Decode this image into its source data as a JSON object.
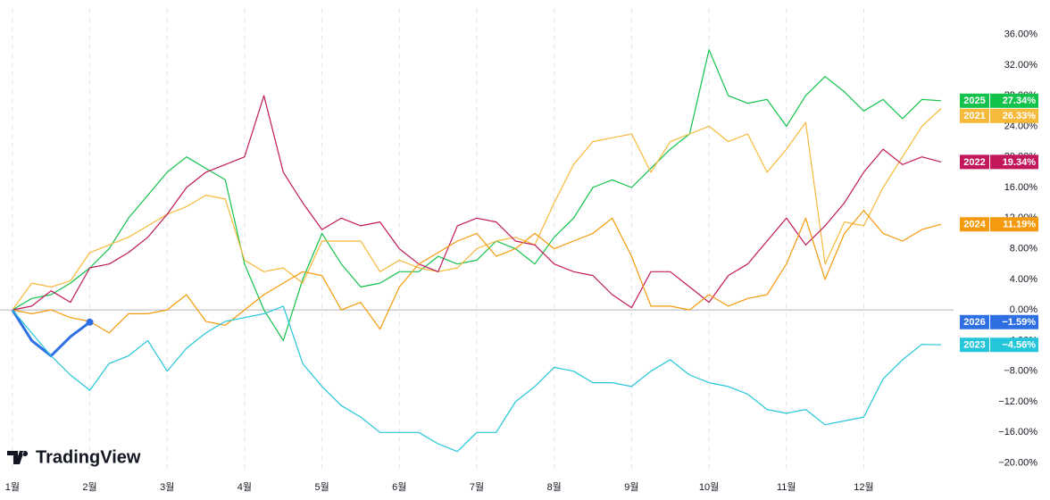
{
  "chart_data": {
    "type": "line",
    "logo": "TradingView",
    "x": [
      0,
      0.25,
      0.5,
      0.75,
      1,
      1.25,
      1.5,
      1.75,
      2,
      2.25,
      2.5,
      2.75,
      3,
      3.25,
      3.5,
      3.75,
      4,
      4.25,
      4.5,
      4.75,
      5,
      5.25,
      5.5,
      5.75,
      6,
      6.25,
      6.5,
      6.75,
      7,
      7.25,
      7.5,
      7.75,
      8,
      8.25,
      8.5,
      8.75,
      9,
      9.25,
      9.5,
      9.75,
      10,
      10.25,
      10.5,
      10.75,
      11,
      11.25,
      11.5,
      11.75,
      12
    ],
    "xlim": [
      -0.16,
      12.16
    ],
    "xticks": [
      {
        "value": 0,
        "label": "1월"
      },
      {
        "value": 1,
        "label": "2월"
      },
      {
        "value": 2,
        "label": "3월"
      },
      {
        "value": 3,
        "label": "4월"
      },
      {
        "value": 4,
        "label": "5월"
      },
      {
        "value": 5,
        "label": "6월"
      },
      {
        "value": 6,
        "label": "7월"
      },
      {
        "value": 7,
        "label": "8월"
      },
      {
        "value": 8,
        "label": "9월"
      },
      {
        "value": 9,
        "label": "10월"
      },
      {
        "value": 10,
        "label": "11월"
      },
      {
        "value": 11,
        "label": "12월"
      }
    ],
    "ylim": [
      -22.5,
      40.5
    ],
    "yticks": [
      {
        "value": -20,
        "label": "−20.00%"
      },
      {
        "value": -16,
        "label": "−16.00%"
      },
      {
        "value": -12,
        "label": "−12.00%"
      },
      {
        "value": -8,
        "label": "−8.00%"
      },
      {
        "value": -4,
        "label": "−4.00%"
      },
      {
        "value": 0,
        "label": "0.00%"
      },
      {
        "value": 4,
        "label": "4.00%"
      },
      {
        "value": 8,
        "label": "8.00%"
      },
      {
        "value": 12,
        "label": "12.00%"
      },
      {
        "value": 16,
        "label": "16.00%"
      },
      {
        "value": 20,
        "label": "20.00%"
      },
      {
        "value": 24,
        "label": "24.00%"
      },
      {
        "value": 28,
        "label": "28.00%"
      },
      {
        "value": 32,
        "label": "32.00%"
      },
      {
        "value": 36,
        "label": "36.00%"
      }
    ],
    "series": [
      {
        "name": "2025",
        "color": "#13c24b",
        "values": [
          0,
          1.5,
          2,
          3.5,
          5.5,
          8,
          12,
          15,
          18,
          20,
          18.5,
          17,
          6,
          0,
          -4,
          4,
          10,
          6,
          3,
          3.5,
          5,
          5,
          7,
          6,
          6.5,
          9,
          8,
          6,
          9.5,
          12,
          16,
          17,
          16,
          18.5,
          21,
          23,
          34,
          28,
          27,
          27.5,
          24,
          28,
          30.5,
          28.5,
          26,
          27.5,
          25,
          27.5,
          27.34
        ],
        "value_labels": [
          null,
          null,
          null,
          null,
          null,
          null,
          null,
          null,
          null,
          null,
          null,
          null,
          null,
          null,
          null,
          null,
          null,
          null,
          null,
          null,
          null,
          null,
          null,
          null,
          null,
          null,
          null,
          null,
          null,
          null,
          null,
          null,
          null,
          null,
          null,
          null,
          null,
          null,
          null,
          null,
          null,
          null,
          null,
          null,
          null,
          null,
          null,
          null,
          "27.34%"
        ]
      },
      {
        "name": "2021",
        "color": "#f7b93a",
        "values": [
          0,
          3.5,
          3,
          3.8,
          7.5,
          8.5,
          9.5,
          11,
          12.5,
          13.5,
          15,
          14.5,
          6.5,
          5,
          5.5,
          3.5,
          9,
          9,
          9,
          5,
          6.5,
          5.5,
          5,
          5.5,
          8,
          9,
          9.5,
          8.5,
          14,
          19,
          22,
          22.5,
          23,
          18,
          22,
          23,
          24,
          22,
          23,
          18,
          21,
          24.5,
          6,
          11.5,
          11,
          16,
          20,
          24,
          26.33
        ],
        "value_labels": [
          null,
          null,
          null,
          null,
          null,
          null,
          null,
          null,
          null,
          null,
          null,
          null,
          null,
          null,
          null,
          null,
          null,
          null,
          null,
          null,
          null,
          null,
          null,
          null,
          null,
          null,
          null,
          null,
          null,
          null,
          null,
          null,
          null,
          null,
          null,
          null,
          null,
          null,
          null,
          null,
          null,
          null,
          null,
          null,
          null,
          null,
          null,
          null,
          "26.33%"
        ]
      },
      {
        "name": "2022",
        "color": "#c2185b",
        "values": [
          0,
          0.5,
          2.5,
          1,
          5.5,
          6,
          7.5,
          9.5,
          12.5,
          16,
          18,
          19,
          20,
          28,
          18,
          14,
          10.5,
          12,
          11,
          11.5,
          8,
          6,
          5,
          11,
          12,
          11.5,
          9,
          8.5,
          6,
          5,
          4.5,
          2,
          0.3,
          5,
          5,
          3,
          1,
          4.5,
          6,
          9,
          12,
          8.5,
          11,
          14,
          18,
          21,
          19,
          20,
          19.34
        ],
        "value_labels": [
          null,
          null,
          null,
          null,
          null,
          null,
          null,
          null,
          null,
          null,
          null,
          null,
          null,
          null,
          null,
          null,
          null,
          null,
          null,
          null,
          null,
          null,
          null,
          null,
          null,
          null,
          null,
          null,
          null,
          null,
          null,
          null,
          null,
          null,
          null,
          null,
          null,
          null,
          null,
          null,
          null,
          null,
          null,
          null,
          null,
          null,
          null,
          null,
          "19.34%"
        ]
      },
      {
        "name": "2024",
        "color": "#f59a0c",
        "values": [
          0,
          -0.5,
          0,
          -1,
          -1.5,
          -3,
          -0.5,
          -0.5,
          0,
          2,
          -1.5,
          -2,
          0,
          2,
          3.5,
          5,
          4.5,
          0,
          1,
          -2.5,
          3,
          6,
          7.5,
          9,
          10,
          7,
          8,
          10,
          8,
          9,
          10,
          12,
          7,
          0.5,
          0.5,
          0,
          2,
          0.5,
          1.5,
          2,
          6,
          12,
          4,
          10,
          13,
          10,
          9,
          10.5,
          11.19
        ],
        "value_labels": [
          null,
          null,
          null,
          null,
          null,
          null,
          null,
          null,
          null,
          null,
          null,
          null,
          null,
          null,
          null,
          null,
          null,
          null,
          null,
          null,
          null,
          null,
          null,
          null,
          null,
          null,
          null,
          null,
          null,
          null,
          null,
          null,
          null,
          null,
          null,
          null,
          null,
          null,
          null,
          null,
          null,
          null,
          null,
          null,
          null,
          null,
          null,
          null,
          "11.19%"
        ]
      },
      {
        "name": "2026",
        "color": "#2f6fe4",
        "values": [
          0,
          -4,
          -6,
          -3.5,
          -1.59,
          null,
          null,
          null,
          null,
          null,
          null,
          null,
          null,
          null,
          null,
          null,
          null,
          null,
          null,
          null,
          null,
          null,
          null,
          null,
          null,
          null,
          null,
          null,
          null,
          null,
          null,
          null,
          null,
          null,
          null,
          null,
          null,
          null,
          null,
          null,
          null,
          null,
          null,
          null,
          null,
          null,
          null,
          null,
          null
        ],
        "value_labels": [
          null,
          null,
          null,
          null,
          "−1.59%",
          null,
          null,
          null,
          null,
          null,
          null,
          null,
          null,
          null,
          null,
          null,
          null,
          null,
          null,
          null,
          null,
          null,
          null,
          null,
          null,
          null,
          null,
          null,
          null,
          null,
          null,
          null,
          null,
          null,
          null,
          null,
          null,
          null,
          null,
          null,
          null,
          null,
          null,
          null,
          null,
          null,
          null,
          null,
          null
        ]
      },
      {
        "name": "2023",
        "color": "#26c6da",
        "values": [
          0,
          -3,
          -6,
          -8.5,
          -10.5,
          -7,
          -6,
          -4,
          -8,
          -5,
          -3,
          -1.5,
          -1,
          -0.5,
          0.5,
          -7,
          -10,
          -12.5,
          -14,
          -16,
          -16,
          -16,
          -17.5,
          -18.5,
          -16,
          -16,
          -12,
          -10,
          -7.5,
          -8,
          -9.5,
          -9.5,
          -10,
          -8,
          -6.5,
          -8.5,
          -9.5,
          -10,
          -11,
          -13,
          -13.5,
          -13,
          -15,
          -14.5,
          -14,
          -9,
          -6.5,
          -4.5,
          -4.56
        ],
        "value_labels": [
          null,
          null,
          null,
          null,
          null,
          null,
          null,
          null,
          null,
          null,
          null,
          null,
          null,
          null,
          null,
          null,
          null,
          null,
          null,
          null,
          null,
          null,
          null,
          null,
          null,
          null,
          null,
          null,
          null,
          null,
          null,
          null,
          null,
          null,
          null,
          null,
          null,
          null,
          null,
          null,
          null,
          null,
          null,
          null,
          null,
          null,
          null,
          null,
          "−4.56%"
        ]
      }
    ]
  }
}
